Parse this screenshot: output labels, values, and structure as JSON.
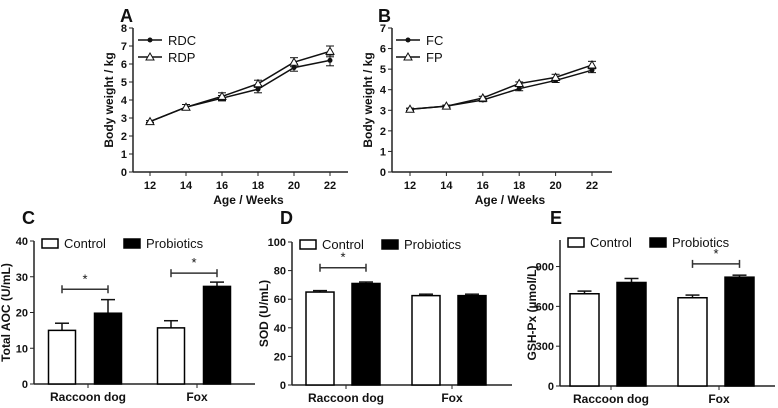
{
  "chart_data": [
    {
      "panel": "A",
      "type": "line",
      "xlabel": "Age / Weeks",
      "ylabel": "Body weight / kg",
      "ylim": [
        0,
        8
      ],
      "yticks": [
        0,
        1,
        2,
        3,
        4,
        5,
        6,
        7,
        8
      ],
      "x": [
        12,
        14,
        16,
        18,
        20,
        22
      ],
      "series": [
        {
          "name": "RDC",
          "marker": "filled-circle",
          "values": [
            2.8,
            3.6,
            4.1,
            4.6,
            5.8,
            6.2
          ],
          "errors": [
            0.05,
            0.15,
            0.15,
            0.2,
            0.2,
            0.3
          ]
        },
        {
          "name": "RDP",
          "marker": "open-triangle",
          "values": [
            2.8,
            3.6,
            4.2,
            4.9,
            6.1,
            6.7
          ],
          "errors": [
            0.05,
            0.15,
            0.2,
            0.2,
            0.25,
            0.3
          ]
        }
      ]
    },
    {
      "panel": "B",
      "type": "line",
      "xlabel": "Age / Weeks",
      "ylabel": "Body weight / kg",
      "ylim": [
        0,
        7
      ],
      "yticks": [
        0,
        1,
        2,
        3,
        4,
        5,
        6,
        7
      ],
      "x": [
        12,
        14,
        16,
        18,
        20,
        22
      ],
      "series": [
        {
          "name": "FC",
          "marker": "filled-circle",
          "values": [
            3.05,
            3.2,
            3.5,
            4.05,
            4.45,
            4.95
          ],
          "errors": [
            0.05,
            0.05,
            0.08,
            0.1,
            0.1,
            0.12
          ]
        },
        {
          "name": "FP",
          "marker": "open-triangle",
          "values": [
            3.05,
            3.2,
            3.6,
            4.3,
            4.6,
            5.2
          ],
          "errors": [
            0.05,
            0.05,
            0.08,
            0.08,
            0.15,
            0.18
          ]
        }
      ]
    },
    {
      "panel": "C",
      "type": "bar",
      "ylabel": "Total AOC (U/mL)",
      "ylim": [
        0,
        40
      ],
      "yticks": [
        0,
        10,
        20,
        30,
        40
      ],
      "categories": [
        "Raccoon dog",
        "Fox"
      ],
      "series": [
        {
          "name": "Control",
          "values": [
            15,
            15.7
          ],
          "errors": [
            2,
            2
          ]
        },
        {
          "name": "Probiotics",
          "values": [
            19.8,
            27.3
          ],
          "errors": [
            3.8,
            1.2
          ]
        }
      ],
      "significance": [
        {
          "category": "Raccoon dog",
          "label": "*",
          "level": 26.5
        },
        {
          "category": "Fox",
          "label": "*",
          "level": 31
        }
      ]
    },
    {
      "panel": "D",
      "type": "bar",
      "ylabel": "SOD (U/mL)",
      "ylim": [
        0,
        100
      ],
      "yticks": [
        0,
        20,
        40,
        60,
        80,
        100
      ],
      "categories": [
        "Raccoon dog",
        "Fox"
      ],
      "series": [
        {
          "name": "Control",
          "values": [
            65,
            62.5
          ],
          "errors": [
            1,
            1
          ]
        },
        {
          "name": "Probiotics",
          "values": [
            71,
            62.5
          ],
          "errors": [
            1,
            1
          ]
        }
      ],
      "significance": [
        {
          "category": "Raccoon dog",
          "label": "*",
          "level": 82
        }
      ]
    },
    {
      "panel": "E",
      "type": "bar",
      "ylabel": "GSH-Px (µmol/L)",
      "ylim": [
        0,
        1100
      ],
      "yticks": [
        0,
        300,
        600,
        900
      ],
      "categories": [
        "Raccoon dog",
        "Fox"
      ],
      "series": [
        {
          "name": "Control",
          "values": [
            695,
            665
          ],
          "errors": [
            20,
            20
          ]
        },
        {
          "name": "Probiotics",
          "values": [
            780,
            820
          ],
          "errors": [
            30,
            15
          ]
        }
      ],
      "significance": [
        {
          "category": "Fox",
          "label": "*",
          "level": 920
        }
      ]
    }
  ]
}
